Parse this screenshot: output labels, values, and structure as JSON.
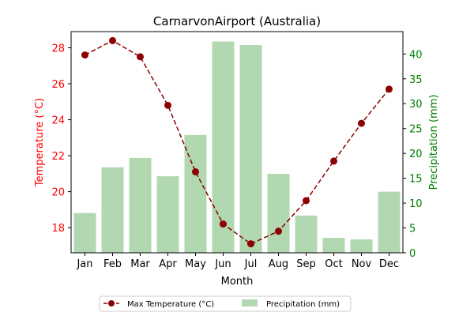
{
  "chart_data": {
    "type": "bar",
    "title": "CarnarvonAirport (Australia)",
    "xlabel": "Month",
    "categories": [
      "Jan",
      "Feb",
      "Mar",
      "Apr",
      "May",
      "Jun",
      "Jul",
      "Aug",
      "Sep",
      "Oct",
      "Nov",
      "Dec"
    ],
    "y_left": {
      "label": "Temperature (°C)",
      "range": [
        16.6,
        28.9
      ],
      "ticks": [
        18,
        20,
        22,
        24,
        26,
        28
      ],
      "color": "#ff0000"
    },
    "y_right": {
      "label": "Precipitation (mm)",
      "range": [
        0,
        44.5
      ],
      "ticks": [
        0,
        5,
        10,
        15,
        20,
        25,
        30,
        35,
        40
      ],
      "color": "#008000"
    },
    "series": [
      {
        "name": "Max Temperature (°C)",
        "type": "line",
        "axis": "left",
        "color": "#8b0000",
        "style": "dashed",
        "marker": "circle",
        "values": [
          27.6,
          28.4,
          27.5,
          24.8,
          21.1,
          18.2,
          17.1,
          17.8,
          19.5,
          21.7,
          23.8,
          25.7
        ]
      },
      {
        "name": "Precipitation (mm)",
        "type": "bar",
        "axis": "right",
        "color": "#b2d8b2",
        "values": [
          8.0,
          17.2,
          19.1,
          15.4,
          23.7,
          42.5,
          41.8,
          15.9,
          7.5,
          3.0,
          2.7,
          12.3
        ]
      }
    ],
    "legend": "bottom-center",
    "grid": false
  }
}
